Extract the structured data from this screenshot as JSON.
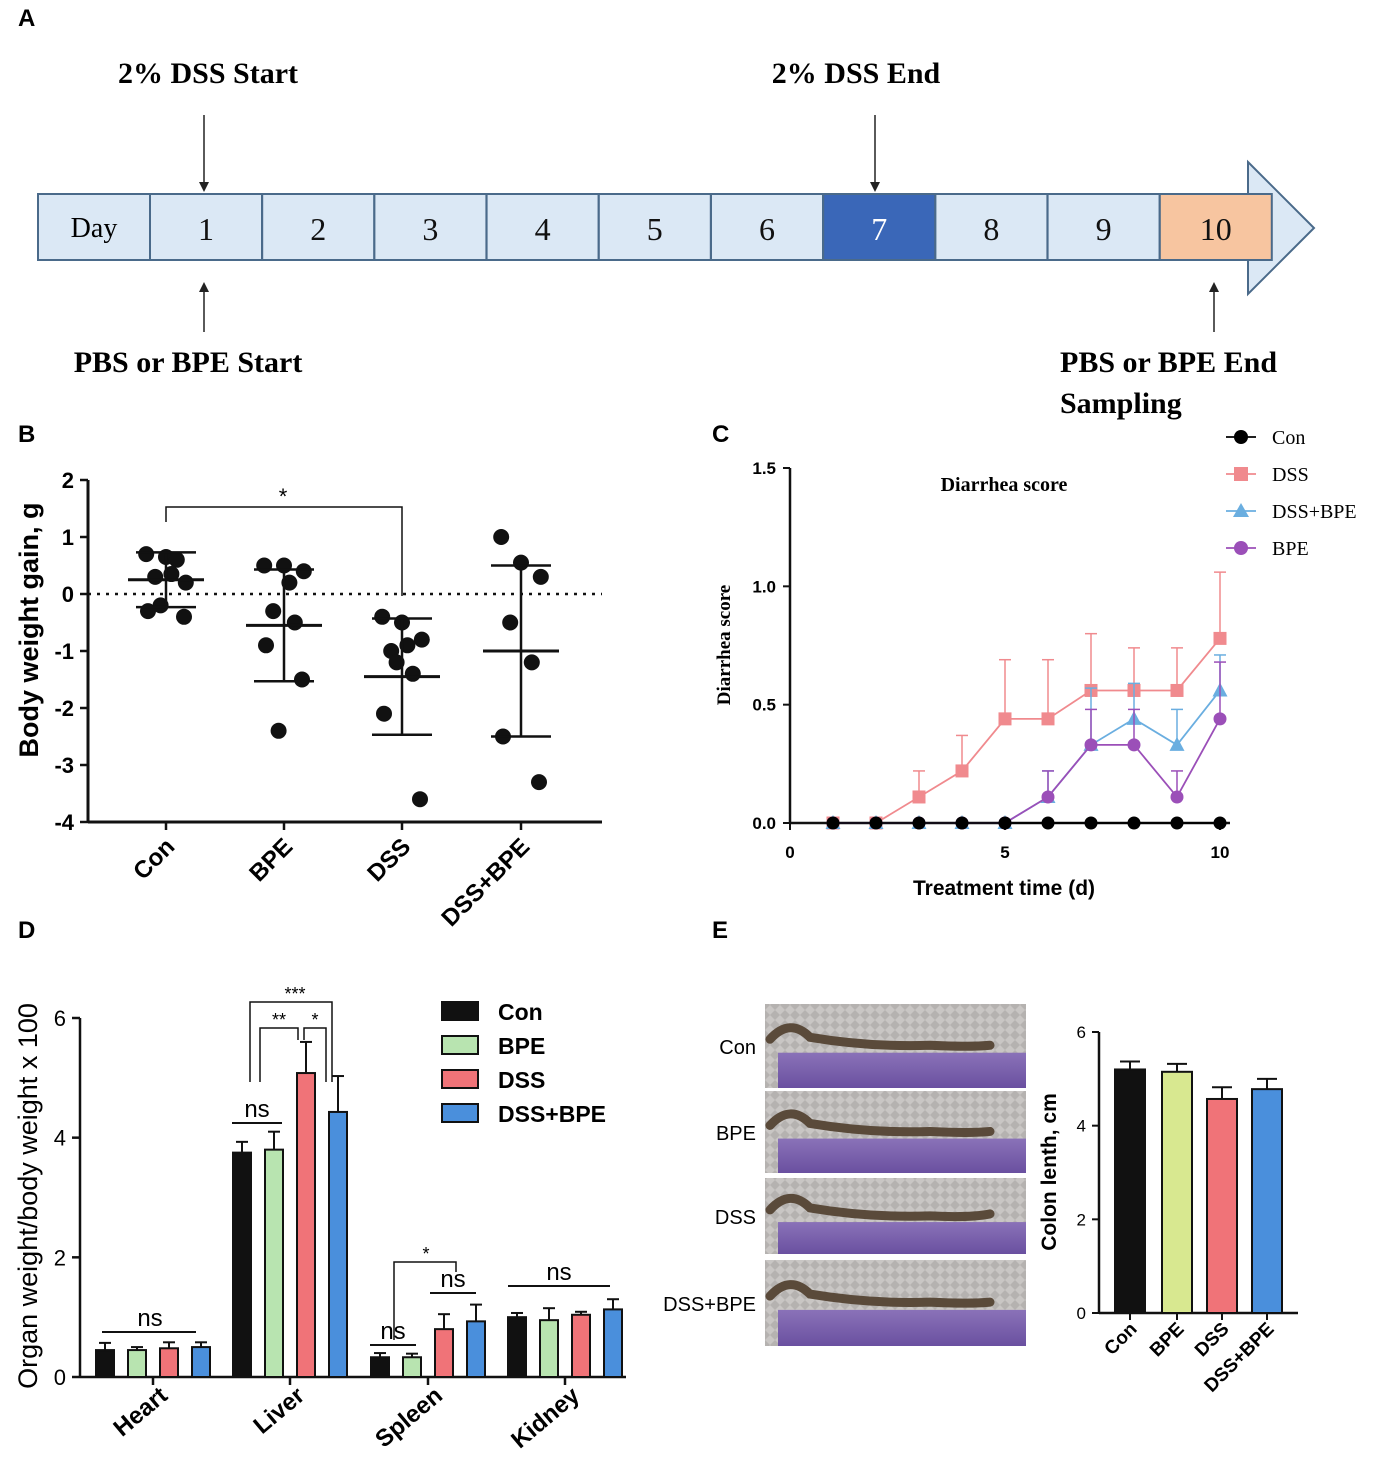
{
  "panels": {
    "a": "A",
    "b": "B",
    "c": "C",
    "d": "D",
    "e": "E"
  },
  "timeline": {
    "day_label": "Day",
    "days": [
      "1",
      "2",
      "3",
      "4",
      "5",
      "6",
      "7",
      "8",
      "9",
      "10"
    ],
    "dss_start": "2% DSS Start",
    "dss_end": "2% DSS End",
    "pbs_start": "PBS or BPE Start",
    "pbs_end_line1": "PBS or BPE End",
    "pbs_end_line2": "Sampling",
    "colors": {
      "box": "#dbe8f5",
      "dss_end_day": "#3a67b8",
      "last_day": "#f7c5a0",
      "stroke": "#4a6a8a"
    }
  },
  "chart_data": [
    {
      "id": "B",
      "type": "scatter",
      "ylabel": "Body weight gain, g",
      "ylim": [
        -4,
        2
      ],
      "yticks": [
        "2",
        "1",
        "0",
        "-1",
        "-2",
        "-3",
        "-4"
      ],
      "categories": [
        "Con",
        "BPE",
        "DSS",
        "DSS+BPE"
      ],
      "points": [
        [
          0.7,
          0.65,
          0.2,
          0.3,
          0.6,
          -0.3,
          -0.4,
          -0.2,
          0.35
        ],
        [
          0.5,
          0.5,
          0.4,
          -0.3,
          -0.5,
          -0.9,
          -1.5,
          -2.4,
          0.2
        ],
        [
          -0.4,
          -0.5,
          -0.8,
          -1,
          -1.4,
          -2.1,
          -3.6,
          -1.2,
          -0.9
        ],
        [
          1,
          0.55,
          0.3,
          -0.5,
          -1.2,
          -2.5,
          -3.3
        ]
      ],
      "mean": [
        0.25,
        -0.55,
        -1.45,
        -1.0
      ],
      "sd": [
        0.48,
        0.98,
        1.02,
        1.5
      ],
      "significance": {
        "label": "*",
        "from": "Con",
        "to": "DSS"
      }
    },
    {
      "id": "C",
      "type": "line",
      "title": "Diarrhea score",
      "xlabel": "Treatment time (d)",
      "ylabel": "Diarrhea score",
      "xlim": [
        0,
        10
      ],
      "ylim": [
        0,
        1.5
      ],
      "xticks": [
        "0",
        "5",
        "10"
      ],
      "yticks": [
        "0.0",
        "0.5",
        "1.0",
        "1.5"
      ],
      "x": [
        1,
        2,
        3,
        4,
        5,
        6,
        7,
        8,
        9,
        10
      ],
      "series": [
        {
          "name": "Con",
          "color": "#000000",
          "marker": "circle",
          "values": [
            0,
            0,
            0,
            0,
            0,
            0,
            0,
            0,
            0,
            0
          ],
          "err": [
            0,
            0,
            0,
            0,
            0,
            0,
            0,
            0,
            0,
            0
          ]
        },
        {
          "name": "DSS",
          "color": "#f08a8e",
          "marker": "square",
          "values": [
            0,
            0,
            0.11,
            0.22,
            0.44,
            0.44,
            0.56,
            0.56,
            0.56,
            0.78
          ],
          "err": [
            0,
            0,
            0.11,
            0.15,
            0.25,
            0.25,
            0.24,
            0.18,
            0.18,
            0.28
          ]
        },
        {
          "name": "DSS+BPE",
          "color": "#6aaee0",
          "marker": "triangle",
          "values": [
            0,
            0,
            0,
            0,
            0,
            0.11,
            0.33,
            0.44,
            0.33,
            0.56
          ],
          "err": [
            0,
            0,
            0,
            0,
            0,
            0.11,
            0.24,
            0.15,
            0.15,
            0.15
          ]
        },
        {
          "name": "BPE",
          "color": "#9b4fb8",
          "marker": "circle",
          "values": [
            0,
            0,
            0,
            0,
            0,
            0.11,
            0.33,
            0.33,
            0.11,
            0.44
          ],
          "err": [
            0,
            0,
            0,
            0,
            0,
            0.11,
            0.15,
            0.15,
            0.11,
            0.24
          ]
        }
      ]
    },
    {
      "id": "D",
      "type": "bar",
      "ylabel": "Organ weight/body weight x 100",
      "ylim": [
        0,
        6
      ],
      "yticks": [
        "0",
        "2",
        "4",
        "6"
      ],
      "categories": [
        "Heart",
        "Liver",
        "Spleen",
        "Kidney"
      ],
      "series": [
        {
          "name": "Con",
          "color": "#111111",
          "values": [
            0.45,
            3.75,
            0.33,
            1.0
          ],
          "err": [
            0.12,
            0.18,
            0.07,
            0.07
          ]
        },
        {
          "name": "BPE",
          "color": "#b8e4b0",
          "values": [
            0.45,
            3.8,
            0.33,
            0.95
          ],
          "err": [
            0.05,
            0.3,
            0.06,
            0.2
          ]
        },
        {
          "name": "DSS",
          "color": "#f07378",
          "values": [
            0.48,
            5.08,
            0.8,
            1.04
          ],
          "err": [
            0.1,
            0.52,
            0.25,
            0.05
          ]
        },
        {
          "name": "DSS+BPE",
          "color": "#4a8fdc",
          "values": [
            0.5,
            4.43,
            0.93,
            1.13
          ],
          "err": [
            0.08,
            0.6,
            0.28,
            0.17
          ]
        }
      ],
      "annotations": {
        "heart": "ns",
        "liver_con_bpe": "ns",
        "liver_top": "***",
        "liver_mid": "**",
        "liver_right": "*",
        "spleen_top": "*",
        "spleen_left": "ns",
        "spleen_right": "ns",
        "kidney": "ns"
      }
    },
    {
      "id": "E",
      "type": "bar",
      "ylabel": "Colon lenth, cm",
      "ylim": [
        0,
        6
      ],
      "yticks": [
        "0",
        "2",
        "4",
        "6"
      ],
      "categories": [
        "Con",
        "BPE",
        "DSS",
        "DSS+BPE"
      ],
      "values": [
        5.2,
        5.15,
        4.57,
        4.78
      ],
      "err": [
        0.17,
        0.17,
        0.25,
        0.22
      ],
      "colors": [
        "#111111",
        "#d8e890",
        "#f07378",
        "#4a8fdc"
      ]
    }
  ],
  "colon_photos": {
    "labels": [
      "Con",
      "BPE",
      "DSS",
      "DSS+BPE"
    ]
  }
}
